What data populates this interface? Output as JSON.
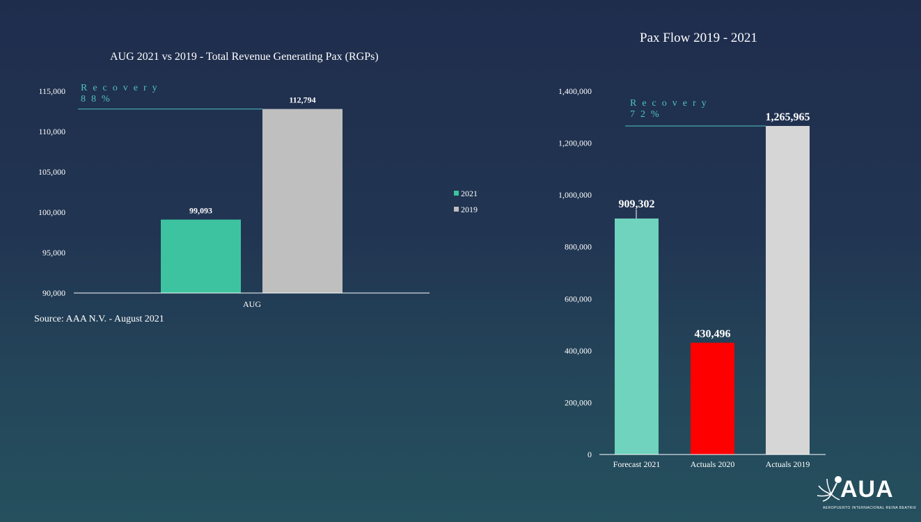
{
  "chart_data": [
    {
      "type": "bar",
      "title": "AUG 2021 vs 2019 - Total Revenue Generating Pax (RGPs)",
      "categories": [
        "AUG"
      ],
      "series": [
        {
          "name": "2021",
          "values": [
            99093
          ],
          "labels": [
            "99,093"
          ],
          "color": "#3ec3a0"
        },
        {
          "name": "2019",
          "values": [
            112794
          ],
          "labels": [
            "112,794"
          ],
          "color": "#bfbfbf"
        }
      ],
      "yticks": [
        "90,000",
        "95,000",
        "100,000",
        "105,000",
        "110,000",
        "115,000"
      ],
      "ytick_values": [
        90000,
        95000,
        100000,
        105000,
        110000,
        115000
      ],
      "ylim": [
        90000,
        115000
      ],
      "legend_position": "right",
      "annotation": {
        "line1": "Recovery",
        "line2": "88%",
        "ref_value": 112794
      },
      "source": "Source: AAA N.V. - August 2021"
    },
    {
      "type": "bar",
      "title": "Pax Flow 2019 - 2021",
      "categories": [
        "Forecast 2021",
        "Actuals 2020",
        "Actuals 2019"
      ],
      "values": [
        909302,
        430496,
        1265965
      ],
      "labels": [
        "909,302",
        "430,496",
        "1,265,965"
      ],
      "colors": [
        "#6fd3bd",
        "#ff0000",
        "#d6d6d6"
      ],
      "yticks": [
        "0",
        "200,000",
        "400,000",
        "600,000",
        "800,000",
        "1,000,000",
        "1,200,000",
        "1,400,000"
      ],
      "ytick_values": [
        0,
        200000,
        400000,
        600000,
        800000,
        1000000,
        1200000,
        1400000
      ],
      "ylim": [
        0,
        1400000
      ],
      "annotation": {
        "line1": "Recovery",
        "line2": "72%",
        "ref_value": 1265965
      }
    }
  ],
  "logo": {
    "text": "AUA",
    "subtitle": "AEROPUERTO INTERNACIONAL REINA BEATRIX",
    "icon": "aua-flower-logo-icon"
  }
}
